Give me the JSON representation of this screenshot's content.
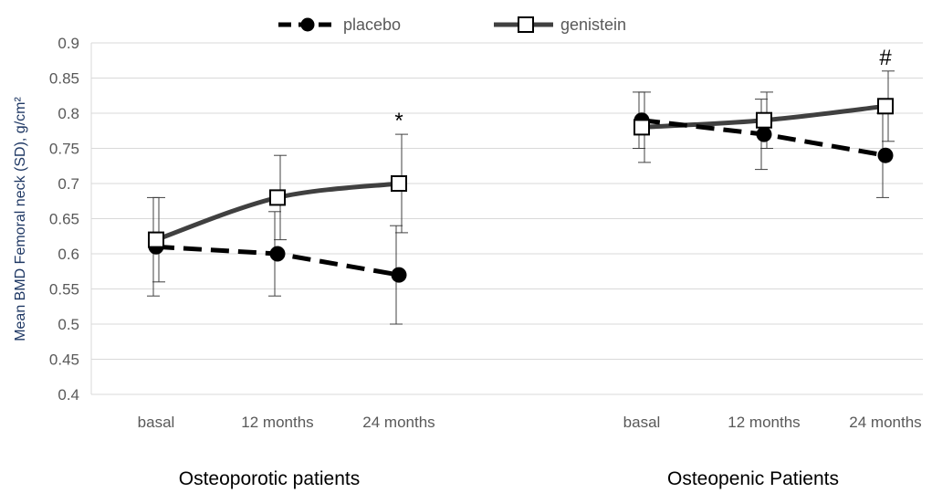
{
  "chart_data": {
    "type": "line",
    "title": "",
    "ylabel": "Mean BMD Femoral neck (SD), g/cm²",
    "ylim": [
      0.4,
      0.9
    ],
    "ytick_step": 0.05,
    "yticks": [
      "0.4",
      "0.45",
      "0.5",
      "0.55",
      "0.6",
      "0.65",
      "0.7",
      "0.75",
      "0.8",
      "0.85",
      "0.9"
    ],
    "grid": true,
    "legend_position": "top-center",
    "colors": {
      "placebo": "#000000",
      "genistein": "#404040",
      "grid": "#d9d9d9",
      "errorbar": "#404040"
    },
    "groups": [
      {
        "label": "Osteoporotic patients",
        "categories": [
          "basal",
          "12 months",
          "24 months"
        ],
        "series": [
          {
            "name": "placebo",
            "marker": "filled-circle",
            "line": "dashed",
            "values": [
              0.61,
              0.6,
              0.57
            ],
            "sd": [
              0.07,
              0.06,
              0.07
            ]
          },
          {
            "name": "genistein",
            "marker": "open-square",
            "line": "solid",
            "values": [
              0.62,
              0.68,
              0.7
            ],
            "sd": [
              0.06,
              0.06,
              0.07
            ]
          }
        ],
        "annotations": [
          {
            "category": "24 months",
            "text": "*"
          }
        ]
      },
      {
        "label": "Osteopenic Patients",
        "categories": [
          "basal",
          "12 months",
          "24 months"
        ],
        "series": [
          {
            "name": "placebo",
            "marker": "filled-circle",
            "line": "dashed",
            "values": [
              0.79,
              0.77,
              0.74
            ],
            "sd": [
              0.04,
              0.05,
              0.06
            ]
          },
          {
            "name": "genistein",
            "marker": "open-square",
            "line": "solid",
            "values": [
              0.78,
              0.79,
              0.81
            ],
            "sd": [
              0.05,
              0.04,
              0.05
            ]
          }
        ],
        "annotations": [
          {
            "category": "24 months",
            "text": "#"
          }
        ]
      }
    ]
  },
  "legend": {
    "placebo": "placebo",
    "genistein": "genistein"
  }
}
